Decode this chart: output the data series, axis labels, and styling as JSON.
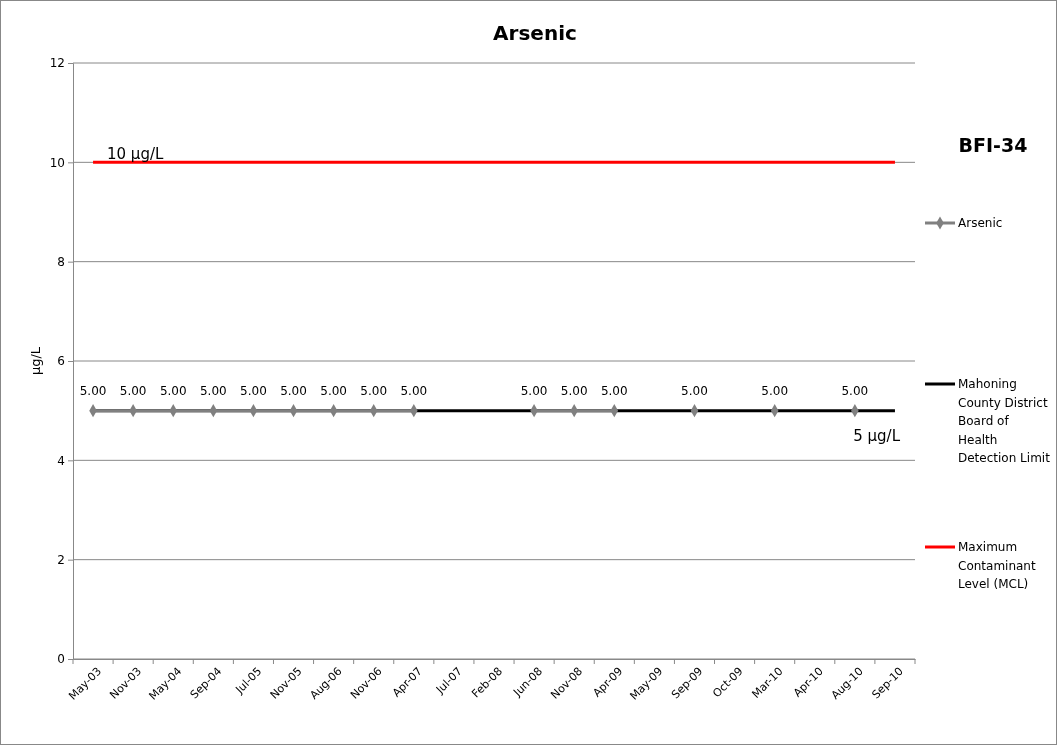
{
  "chart_data": {
    "type": "line",
    "title": "Arsenic",
    "ylabel": "μg/L",
    "categories": [
      "May-03",
      "Nov-03",
      "May-04",
      "Sep-04",
      "Jul-05",
      "Nov-05",
      "Aug-06",
      "Nov-06",
      "Apr-07",
      "Jul-07",
      "Feb-08",
      "Jun-08",
      "Nov-08",
      "Apr-09",
      "May-09",
      "Sep-09",
      "Oct-09",
      "Mar-10",
      "Apr-10",
      "Aug-10",
      "Sep-10"
    ],
    "series": [
      {
        "name": "Arsenic",
        "color": "#808080",
        "marker": "diamond",
        "values": [
          5,
          5,
          5,
          5,
          5,
          5,
          5,
          5,
          5,
          null,
          null,
          5,
          5,
          5,
          null,
          5,
          null,
          5,
          null,
          5,
          null
        ],
        "value_labels": [
          "5.00",
          "5.00",
          "5.00",
          "5.00",
          "5.00",
          "5.00",
          "5.00",
          "5.00",
          "5.00",
          null,
          null,
          "5.00",
          "5.00",
          "5.00",
          null,
          "5.00",
          null,
          "5.00",
          null,
          "5.00",
          null
        ]
      },
      {
        "name": "Mahoning County District Board of Health Detection Limit",
        "color": "#000000",
        "marker": "none",
        "values": [
          5,
          5,
          5,
          5,
          5,
          5,
          5,
          5,
          5,
          5,
          5,
          5,
          5,
          5,
          5,
          5,
          5,
          5,
          5,
          5,
          5
        ]
      },
      {
        "name": "Maximum Contaminant Level (MCL)",
        "color": "#ff0000",
        "marker": "none",
        "values": [
          10,
          10,
          10,
          10,
          10,
          10,
          10,
          10,
          10,
          10,
          10,
          10,
          10,
          10,
          10,
          10,
          10,
          10,
          10,
          10,
          10
        ]
      }
    ],
    "ylim": [
      0,
      12
    ],
    "yticks": [
      0,
      2,
      4,
      6,
      8,
      10,
      12
    ],
    "grid": "y",
    "legend": "right",
    "annotations": [
      "10 μg/L",
      "5 μg/L",
      "BFI-34"
    ]
  }
}
